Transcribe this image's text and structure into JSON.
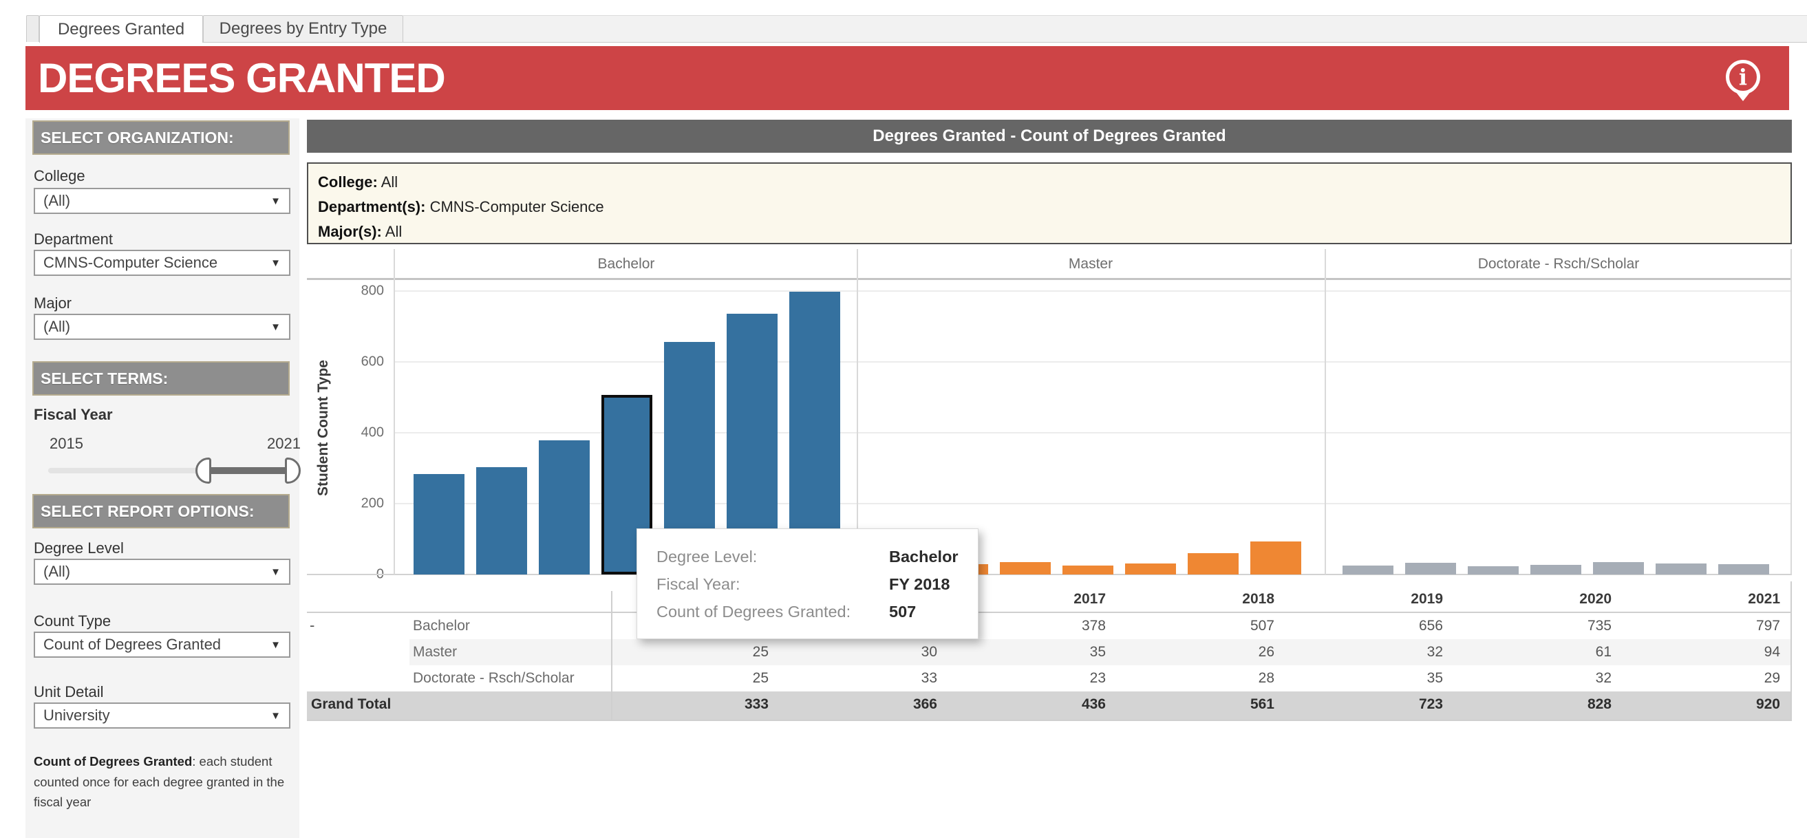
{
  "tabs": [
    {
      "label": "Degrees Granted",
      "active": true
    },
    {
      "label": "Degrees by Entry Type",
      "active": false
    }
  ],
  "banner": {
    "title": "DEGREES GRANTED",
    "color": "#cd4446"
  },
  "sidebar": {
    "section_headers": [
      "SELECT ORGANIZATION:",
      "SELECT TERMS:",
      "SELECT REPORT OPTIONS:"
    ],
    "organization_filters": [
      {
        "label": "College",
        "value": "(All)"
      },
      {
        "label": "Department",
        "value": "CMNS-Computer Science"
      },
      {
        "label": "Major",
        "value": "(All)"
      }
    ],
    "slider": {
      "label": "Fiscal Year",
      "min_label": "2015",
      "max_label": "2021"
    },
    "report_filters": [
      {
        "label": "Degree Level",
        "value": "(All)"
      },
      {
        "label": "Count Type",
        "value": "Count of Degrees Granted"
      },
      {
        "label": "Unit Detail",
        "value": "University"
      }
    ],
    "footnote_bold": "Count of Degrees Granted",
    "footnote_rest": ": each student counted once for each degree granted in the fiscal year"
  },
  "main": {
    "title": "Degrees Granted - Count of Degrees Granted",
    "filter_summary": [
      {
        "label": "College:",
        "value": "All"
      },
      {
        "label": "Department(s):",
        "value": "CMNS-Computer Science"
      },
      {
        "label": "Major(s):",
        "value": "All"
      }
    ]
  },
  "chart_data": {
    "type": "bar",
    "title": "Degrees Granted - Count of Degrees Granted",
    "ylabel": "Student Count Type",
    "ylim": [
      0,
      830
    ],
    "yticks": [
      0,
      200,
      400,
      600,
      800
    ],
    "grid": true,
    "panels": [
      "Bachelor",
      "Master",
      "Doctorate - Rsch/Scholar"
    ],
    "x": [
      "2015",
      "2016",
      "2017",
      "2018",
      "2019",
      "2020",
      "2021"
    ],
    "series": [
      {
        "name": "Bachelor",
        "color": "#35719f",
        "values": [
          283,
          303,
          378,
          507,
          656,
          735,
          797
        ]
      },
      {
        "name": "Master",
        "color": "#ef8733",
        "values": [
          25,
          30,
          35,
          26,
          32,
          61,
          94
        ]
      },
      {
        "name": "Doctorate - Rsch/Scholar",
        "color": "#a6adb6",
        "values": [
          25,
          33,
          23,
          28,
          35,
          32,
          29
        ]
      }
    ],
    "highlight": {
      "series": "Bachelor",
      "x": "2018",
      "value": 507
    }
  },
  "table": {
    "columns": [
      "2015",
      "2016",
      "2017",
      "2018",
      "2019",
      "2020",
      "2021"
    ],
    "rows": [
      {
        "label": "Bachelor",
        "collapse": "-",
        "values": [
          "283",
          "303",
          "378",
          "507",
          "656",
          "735",
          "797"
        ],
        "band": false,
        "grand": false
      },
      {
        "label": "Master",
        "collapse": "",
        "values": [
          "25",
          "30",
          "35",
          "26",
          "32",
          "61",
          "94"
        ],
        "band": true,
        "grand": false
      },
      {
        "label": "Doctorate - Rsch/Scholar",
        "collapse": "",
        "values": [
          "25",
          "33",
          "23",
          "28",
          "35",
          "32",
          "29"
        ],
        "band": false,
        "grand": false
      },
      {
        "label": "Grand Total",
        "collapse": "",
        "values": [
          "333",
          "366",
          "436",
          "561",
          "723",
          "828",
          "920"
        ],
        "band": false,
        "grand": true
      }
    ]
  },
  "tooltip": {
    "rows": [
      {
        "label": "Degree Level:",
        "value": "Bachelor"
      },
      {
        "label": "Fiscal Year:",
        "value": "FY 2018"
      },
      {
        "label": "Count of Degrees Granted:",
        "value": "507"
      }
    ]
  },
  "colors": {
    "banner_red": "#cd4446",
    "title_bar_gray": "#666666",
    "section_header_gray": "#8e8e8e",
    "filter_box_cream": "#fbf8ec",
    "bachelor_blue": "#35719f",
    "master_orange": "#ef8733",
    "doctorate_gray": "#a6adb6",
    "grand_total_band": "#d4d4d4",
    "master_band": "#f4f4f4"
  }
}
